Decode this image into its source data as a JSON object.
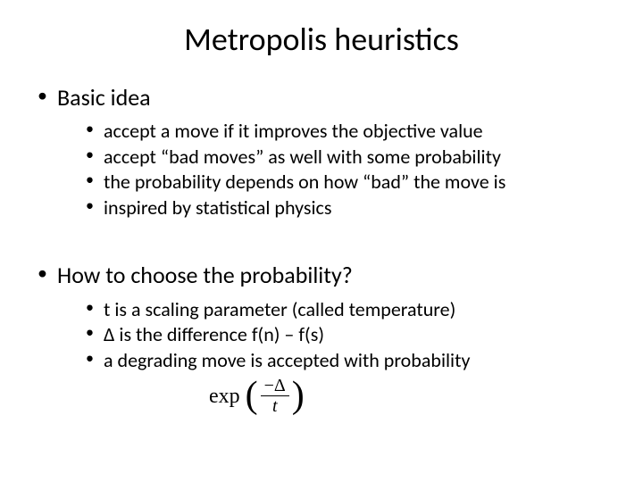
{
  "title": "Metropolis heuristics",
  "section1": {
    "heading": "Basic idea",
    "items": [
      "accept a move if it improves the objective value",
      "accept “bad moves” as well with some probability",
      "the probability depends on how “bad” the move is",
      "inspired by statistical physics"
    ]
  },
  "section2": {
    "heading": "How to choose the probability?",
    "items": [
      "t is a scaling parameter (called temperature)",
      "Δ is the difference  f(n) – f(s)",
      "a degrading move is accepted with probability"
    ]
  },
  "formula": {
    "exp": "exp",
    "numerator": "−Δ",
    "denominator": "t"
  },
  "style": {
    "background_color": "#ffffff",
    "text_color": "#000000",
    "title_fontsize": 36,
    "level1_fontsize": 26,
    "level2_fontsize": 22,
    "font_family": "Calibri",
    "formula_font_family": "Cambria Math"
  }
}
